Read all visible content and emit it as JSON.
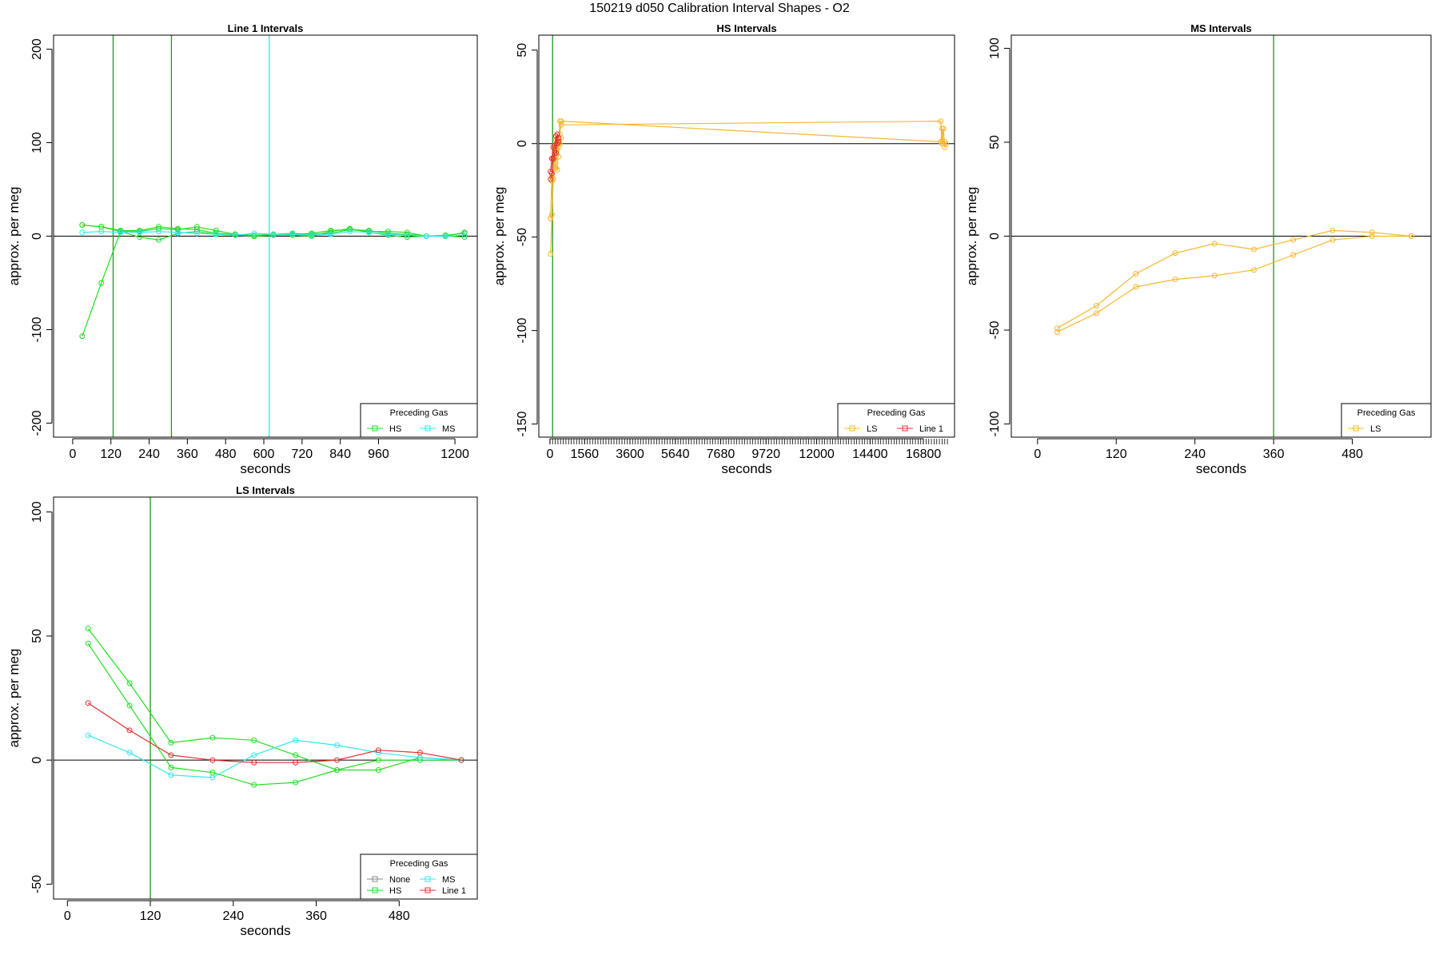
{
  "page": {
    "title": "150219   d050   Calibration Interval Shapes - O2"
  },
  "colors": {
    "HS": "#22dd22",
    "MS": "#33e6f0",
    "LS": "#f5b731",
    "Line 1": "#e03030",
    "None": "#888888",
    "vline": "#1a9a1a",
    "vline_ms": "#33e6f0"
  },
  "chart_data": [
    {
      "type": "line",
      "title": "Line 1 Intervals",
      "xlabel": "seconds",
      "ylabel": "approx. per meg",
      "xlim": [
        -60,
        1270
      ],
      "ylim": [
        -215,
        215
      ],
      "xticks": [
        0,
        120,
        240,
        360,
        480,
        600,
        720,
        840,
        960,
        1200
      ],
      "yticks": [
        -200,
        -100,
        0,
        100,
        200
      ],
      "vlines": [
        {
          "x": 127,
          "color": "vline"
        },
        {
          "x": 310,
          "color": "vline"
        },
        {
          "x": 617,
          "color": "vline_ms"
        }
      ],
      "legend": {
        "title": "Preceding Gas",
        "position": "bottom-right",
        "entries": [
          [
            "HS",
            "MS"
          ]
        ]
      },
      "series": [
        {
          "name": "HS",
          "x": [
            30,
            90,
            150,
            210,
            270,
            330,
            390,
            450,
            510,
            570,
            630,
            690,
            750,
            810,
            870,
            930,
            990,
            1050,
            1110,
            1170,
            1230
          ],
          "values": [
            -107,
            -50,
            5,
            5,
            8,
            7,
            10,
            6,
            2,
            0,
            1,
            2,
            3,
            6,
            7,
            5,
            5,
            4,
            0,
            0,
            4
          ]
        },
        {
          "name": "HS",
          "x": [
            30,
            90,
            150,
            210,
            270,
            330,
            390,
            450,
            510,
            570,
            630,
            690,
            750,
            810,
            870,
            930,
            990,
            1050,
            1110,
            1170,
            1230
          ],
          "values": [
            12,
            10,
            5,
            -1,
            -4,
            3,
            5,
            2,
            1,
            0,
            2,
            1,
            0,
            5,
            8,
            4,
            1,
            -1,
            0,
            0,
            -1
          ]
        },
        {
          "name": "HS",
          "x": [
            30,
            90,
            150,
            210,
            270,
            330,
            390,
            450,
            510,
            570,
            630,
            690,
            750,
            810,
            870,
            930,
            990,
            1050,
            1110,
            1170,
            1230
          ],
          "values": [
            12,
            10,
            6,
            6,
            10,
            8,
            7,
            3,
            2,
            1,
            2,
            3,
            2,
            3,
            7,
            6,
            3,
            2,
            0,
            1,
            3
          ]
        },
        {
          "name": "MS",
          "x": [
            30,
            90,
            150,
            210,
            270,
            330,
            390,
            450,
            510,
            570,
            630,
            690,
            750,
            810,
            870,
            930,
            990,
            1050,
            1110,
            1170,
            1230
          ],
          "values": [
            4,
            5,
            4,
            4,
            5,
            4,
            3,
            2,
            1,
            3,
            2,
            2,
            1,
            2,
            5,
            4,
            2,
            1,
            0,
            0,
            1
          ]
        }
      ]
    },
    {
      "type": "line",
      "title": "HS Intervals",
      "xlabel": "seconds",
      "ylabel": "approx. per meg",
      "xlim": [
        -500,
        18200
      ],
      "ylim": [
        -157,
        58
      ],
      "xticks": [
        0,
        1560,
        3600,
        5640,
        7680,
        9720,
        12000,
        14400,
        16800
      ],
      "yticks": [
        -150,
        -100,
        -50,
        0,
        50
      ],
      "minor_tick_step": 120,
      "minor_tick_range": [
        0,
        17880
      ],
      "vlines": [
        {
          "x": 120,
          "color": "vline"
        }
      ],
      "legend": {
        "title": "Preceding Gas",
        "position": "bottom-right",
        "entries": [
          [
            "LS",
            "Line 1"
          ]
        ]
      },
      "series": [
        {
          "name": "LS",
          "x": [
            30,
            90,
            150,
            210,
            270,
            330,
            390,
            450,
            510,
            17580,
            17640,
            17700,
            17760,
            17820
          ],
          "values": [
            -59,
            -38,
            -19,
            -8,
            2,
            5,
            0,
            12,
            10,
            12,
            0,
            8,
            -2,
            0
          ]
        },
        {
          "name": "LS",
          "x": [
            30,
            90,
            150,
            210,
            270,
            330,
            390,
            450,
            510,
            17580,
            17640,
            17700,
            17760
          ],
          "values": [
            -40,
            -20,
            -12,
            -4,
            -13,
            1,
            -7,
            5,
            12,
            1,
            8,
            0,
            1
          ]
        },
        {
          "name": "LS",
          "x": [
            30,
            90,
            150,
            210,
            270,
            330,
            390,
            450,
            510
          ],
          "values": [
            -40,
            -18,
            -8,
            -1,
            -13,
            -14,
            -2,
            0,
            3
          ]
        },
        {
          "name": "Line 1",
          "x": [
            30,
            90,
            150,
            210,
            270,
            330,
            390
          ],
          "values": [
            -19,
            -16,
            -8,
            -5,
            -5,
            5,
            3
          ]
        },
        {
          "name": "Line 1",
          "x": [
            30,
            90,
            150,
            210,
            270,
            330,
            390
          ],
          "values": [
            -15,
            -8,
            -2,
            -1,
            4,
            0,
            1
          ]
        }
      ]
    },
    {
      "type": "line",
      "title": "MS Intervals",
      "xlabel": "seconds",
      "ylabel": "approx. per meg",
      "xlim": [
        -40,
        600
      ],
      "ylim": [
        -107,
        107
      ],
      "xticks": [
        0,
        120,
        240,
        360,
        480
      ],
      "yticks": [
        -100,
        -50,
        0,
        50,
        100
      ],
      "vlines": [
        {
          "x": 360,
          "color": "vline"
        }
      ],
      "legend": {
        "title": "Preceding Gas",
        "position": "bottom-right",
        "entries": [
          [
            "LS"
          ]
        ]
      },
      "series": [
        {
          "name": "LS",
          "x": [
            30,
            90,
            150,
            210,
            270,
            330,
            390,
            450,
            510,
            570
          ],
          "values": [
            -49,
            -37,
            -20,
            -9,
            -4,
            -7,
            -2,
            3,
            2,
            0
          ]
        },
        {
          "name": "LS",
          "x": [
            30,
            90,
            150,
            210,
            270,
            330,
            390,
            450,
            510,
            570
          ],
          "values": [
            -51,
            -41,
            -27,
            -23,
            -21,
            -18,
            -10,
            -2,
            0,
            0
          ]
        }
      ]
    },
    {
      "type": "line",
      "title": "LS Intervals",
      "xlabel": "seconds",
      "ylabel": "approx. per meg",
      "xlim": [
        -20,
        593
      ],
      "ylim": [
        -56,
        106
      ],
      "xticks": [
        0,
        120,
        240,
        360,
        480
      ],
      "yticks": [
        -50,
        0,
        50,
        100
      ],
      "vlines": [
        {
          "x": 120,
          "color": "vline"
        }
      ],
      "legend": {
        "title": "Preceding Gas",
        "position": "bottom-right",
        "entries": [
          [
            "None",
            "MS"
          ],
          [
            "HS",
            "Line 1"
          ]
        ]
      },
      "series": [
        {
          "name": "HS",
          "x": [
            30,
            90,
            150,
            210,
            270,
            330,
            390,
            450,
            510,
            570
          ],
          "values": [
            53,
            31,
            7,
            9,
            8,
            2,
            -4,
            -4,
            1,
            0
          ]
        },
        {
          "name": "HS",
          "x": [
            30,
            90,
            150,
            210,
            270,
            330,
            390,
            450,
            510,
            570
          ],
          "values": [
            47,
            22,
            -3,
            -5,
            -10,
            -9,
            -4,
            0,
            0,
            0
          ]
        },
        {
          "name": "MS",
          "x": [
            30,
            90,
            150,
            210,
            270,
            330,
            390,
            450,
            510,
            570
          ],
          "values": [
            10,
            3,
            -6,
            -7,
            2,
            8,
            6,
            3,
            1,
            0
          ]
        },
        {
          "name": "Line 1",
          "x": [
            30,
            90,
            150,
            210,
            270,
            330,
            390,
            450,
            510,
            570
          ],
          "values": [
            23,
            12,
            2,
            0,
            -1,
            -1,
            0,
            4,
            3,
            0
          ]
        }
      ]
    }
  ]
}
